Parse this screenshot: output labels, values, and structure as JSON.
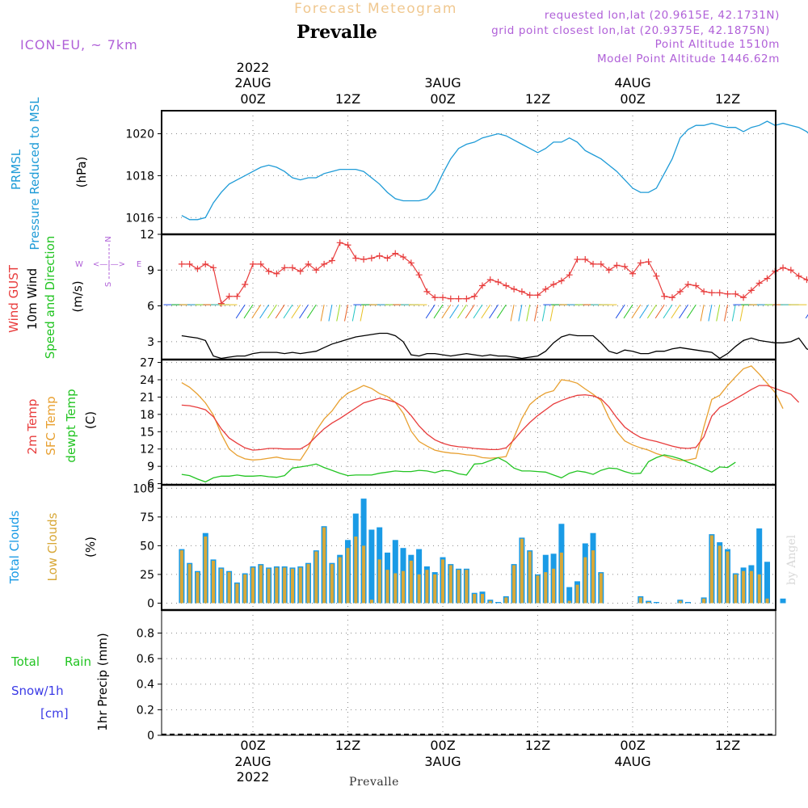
{
  "header": {
    "title": "Forecast Meteogram",
    "location": "Prevalle",
    "model": "ICON-EU, ~ 7km",
    "requested": "requested lon,lat (20.9615E, 42.1731N)",
    "grid_point": "grid point closest lon,lat (20.9375E, 42.1875N)",
    "point_alt": "Point Altitude 1510m",
    "model_alt": "Model Point Altitude 1446.62m",
    "footer_location": "Prevalle",
    "credit": "by Angel"
  },
  "time_axis": {
    "top_labels": [
      {
        "line1": "2022",
        "line2": "2AUG",
        "line3": "00Z"
      },
      {
        "line1": "",
        "line2": "",
        "line3": "12Z"
      },
      {
        "line1": "",
        "line2": "3AUG",
        "line3": "00Z"
      },
      {
        "line1": "",
        "line2": "",
        "line3": "12Z"
      },
      {
        "line1": "",
        "line2": "4AUG",
        "line3": "00Z"
      },
      {
        "line1": "",
        "line2": "",
        "line3": "12Z"
      }
    ],
    "bottom_labels": [
      {
        "line1": "00Z",
        "line2": "2AUG",
        "line3": "2022"
      },
      {
        "line1": "12Z",
        "line2": "",
        "line3": ""
      },
      {
        "line1": "00Z",
        "line2": "3AUG",
        "line3": ""
      },
      {
        "line1": "12Z",
        "line2": "",
        "line3": ""
      },
      {
        "line1": "00Z",
        "line2": "4AUG",
        "line3": ""
      },
      {
        "line1": "12Z",
        "line2": "",
        "line3": ""
      }
    ]
  },
  "panels": {
    "pressure": {
      "label1": "PRMSL",
      "label2": "Pressure Reduced to MSL",
      "unit": "(hPa)",
      "ticks": [
        "1020",
        "1018",
        "1016"
      ]
    },
    "wind": {
      "label1": "Wind GUST",
      "label2": "10m Wind",
      "label3": "Speed and Direction",
      "unit": "(m/s)",
      "ticks": [
        "12",
        "9",
        "6",
        "3"
      ],
      "compass": {
        "n": "N",
        "s": "S",
        "w": "W",
        "e": "E"
      }
    },
    "temp": {
      "label1": "2m Temp",
      "label2": "SFC Temp",
      "label3": "dewpt Temp",
      "unit": "(C)",
      "ticks": [
        "27",
        "24",
        "21",
        "18",
        "15",
        "12",
        "9",
        "6"
      ]
    },
    "clouds": {
      "label1": "Total Clouds",
      "label2": "Low Clouds",
      "unit": "(%)",
      "ticks": [
        "100",
        "75",
        "50",
        "25",
        "0"
      ]
    },
    "precip": {
      "label1": "Total",
      "label1b": "Rain",
      "label2": "Snow/1h",
      "label3": "[cm]",
      "unit": "1hr Precip (mm)",
      "ticks": [
        "0.8",
        "0.6",
        "0.4",
        "0.2",
        "0"
      ]
    }
  },
  "colors": {
    "pressure": "#1e9bd7",
    "gust": "#e83c3c",
    "wind": "#000000",
    "temp2m": "#e83c3c",
    "sfc": "#e8a030",
    "dewpt": "#22c422",
    "total_clouds": "#1a9be6",
    "low_clouds": "#d8a838",
    "title": "#f0c890",
    "purple": "#b060d8",
    "rain": "#22c422",
    "snow": "#3a3ae6"
  },
  "chart_data": [
    {
      "type": "line",
      "name": "PRMSL",
      "ylabel": "(hPa)",
      "ylim": [
        1015.2,
        1021.1
      ],
      "x_hours_from_2AUG_00Z_start": -9,
      "x_step_hours": 1,
      "values": [
        1016.1,
        1015.9,
        1015.9,
        1016.0,
        1016.7,
        1017.2,
        1017.6,
        1017.8,
        1018.0,
        1018.2,
        1018.4,
        1018.5,
        1018.4,
        1018.2,
        1017.9,
        1017.8,
        1017.9,
        1017.9,
        1018.1,
        1018.2,
        1018.3,
        1018.3,
        1018.3,
        1018.2,
        1017.9,
        1017.6,
        1017.2,
        1016.9,
        1016.8,
        1016.8,
        1016.8,
        1016.9,
        1017.3,
        1018.1,
        1018.8,
        1019.3,
        1019.5,
        1019.6,
        1019.8,
        1019.9,
        1020.0,
        1019.9,
        1019.7,
        1019.5,
        1019.3,
        1019.1,
        1019.3,
        1019.6,
        1019.6,
        1019.8,
        1019.6,
        1019.2,
        1019.0,
        1018.8,
        1018.5,
        1018.2,
        1017.8,
        1017.4,
        1017.2,
        1017.2,
        1017.4,
        1018.1,
        1018.8,
        1019.8,
        1020.2,
        1020.4,
        1020.4,
        1020.5,
        1020.4,
        1020.3,
        1020.3,
        1020.1,
        1020.3,
        1020.4,
        1020.6,
        1020.4,
        1020.5,
        1020.4,
        1020.3,
        1020.1,
        1019.7,
        1019.3,
        1019.0,
        1018.7,
        1018.4,
        1018.7,
        1018.7,
        1018.6,
        1018.8
      ]
    },
    {
      "type": "line",
      "name": "Wind GUST",
      "ylabel": "(m/s)",
      "ylim": [
        1.5,
        12
      ],
      "x_hours_from_2AUG_00Z_start": -9,
      "x_step_hours": 1,
      "values": [
        9.5,
        9.5,
        9.1,
        9.5,
        9.2,
        6.2,
        6.8,
        6.8,
        7.8,
        9.5,
        9.5,
        8.9,
        8.7,
        9.2,
        9.2,
        8.9,
        9.5,
        9.0,
        9.5,
        9.8,
        11.3,
        11.1,
        10.0,
        9.9,
        10.0,
        10.2,
        10.0,
        10.4,
        10.1,
        9.6,
        8.6,
        7.2,
        6.7,
        6.7,
        6.6,
        6.6,
        6.6,
        6.8,
        7.7,
        8.2,
        8.0,
        7.7,
        7.4,
        7.2,
        6.9,
        6.9,
        7.4,
        7.8,
        8.1,
        8.6,
        9.9,
        9.9,
        9.5,
        9.5,
        9.0,
        9.4,
        9.3,
        8.7,
        9.6,
        9.7,
        8.5,
        6.8,
        6.7,
        7.2,
        7.8,
        7.7,
        7.2,
        7.1,
        7.1,
        7.0,
        7.0,
        6.7,
        7.3,
        7.9,
        8.3,
        8.9,
        9.2,
        9.0,
        8.5,
        8.2,
        7.7,
        8.2,
        7.9,
        7.2
      ]
    },
    {
      "type": "line",
      "name": "10m Wind",
      "ylabel": "(m/s)",
      "ylim": [
        1.5,
        12
      ],
      "x_hours_from_2AUG_00Z_start": -9,
      "x_step_hours": 1,
      "values": [
        3.5,
        3.4,
        3.3,
        3.1,
        1.8,
        1.6,
        1.7,
        1.8,
        1.8,
        2.0,
        2.1,
        2.1,
        2.1,
        2.0,
        2.1,
        2.0,
        2.1,
        2.2,
        2.5,
        2.8,
        3.0,
        3.2,
        3.4,
        3.5,
        3.6,
        3.7,
        3.7,
        3.5,
        3.0,
        1.9,
        1.8,
        2.0,
        2.0,
        1.9,
        1.8,
        1.9,
        2.0,
        1.9,
        1.8,
        1.9,
        1.8,
        1.8,
        1.7,
        1.6,
        1.7,
        1.8,
        2.2,
        2.9,
        3.4,
        3.6,
        3.5,
        3.5,
        3.5,
        2.9,
        2.2,
        2.0,
        2.3,
        2.2,
        2.0,
        2.0,
        2.2,
        2.2,
        2.4,
        2.5,
        2.4,
        2.3,
        2.2,
        2.1,
        1.6,
        2.0,
        2.6,
        3.1,
        3.3,
        3.1,
        3.0,
        2.9,
        2.9,
        3.0,
        3.3,
        2.4,
        2.1
      ]
    },
    {
      "type": "line",
      "name": "2m Temp",
      "ylabel": "(C)",
      "ylim": [
        5.8,
        27.5
      ],
      "x_hours_from_2AUG_00Z_start": -9,
      "x_step_hours": 1,
      "values": [
        19.6,
        19.5,
        19.2,
        18.8,
        17.6,
        15.5,
        13.9,
        13.0,
        12.2,
        11.8,
        11.9,
        12.1,
        12.1,
        12.0,
        12.0,
        12.0,
        12.8,
        14.2,
        15.5,
        16.5,
        17.3,
        18.2,
        19.1,
        20.0,
        20.4,
        20.8,
        20.5,
        20.1,
        19.3,
        17.8,
        16.0,
        14.6,
        13.6,
        13.0,
        12.6,
        12.4,
        12.3,
        12.1,
        12.0,
        11.9,
        11.9,
        12.2,
        13.6,
        15.2,
        16.6,
        17.8,
        18.8,
        19.8,
        20.4,
        20.9,
        21.3,
        21.4,
        21.2,
        20.7,
        19.3,
        17.4,
        15.8,
        14.8,
        14.0,
        13.6,
        13.3,
        12.9,
        12.5,
        12.2,
        12.1,
        12.3,
        14.1,
        17.7,
        19.2,
        19.9,
        20.7,
        21.5,
        22.3,
        23.0,
        23.0,
        22.5,
        22.0,
        21.5,
        20.1
      ]
    },
    {
      "type": "line",
      "name": "SFC Temp",
      "ylabel": "(C)",
      "ylim": [
        5.8,
        27.5
      ],
      "x_hours_from_2AUG_00Z_start": -9,
      "x_step_hours": 1,
      "values": [
        23.5,
        22.7,
        21.5,
        20.0,
        17.9,
        14.6,
        12.0,
        10.9,
        10.3,
        10.1,
        10.2,
        10.4,
        10.6,
        10.3,
        10.2,
        10.1,
        12.2,
        15.2,
        17.2,
        18.6,
        20.5,
        21.7,
        22.3,
        23.0,
        22.5,
        21.6,
        21.1,
        20.1,
        18.2,
        15.1,
        13.3,
        12.5,
        11.8,
        11.5,
        11.3,
        11.2,
        11.0,
        10.9,
        10.5,
        10.4,
        10.5,
        10.7,
        14.0,
        17.3,
        19.7,
        20.9,
        21.7,
        22.1,
        24.0,
        23.8,
        23.4,
        22.4,
        21.5,
        20.4,
        17.4,
        15.0,
        13.4,
        12.7,
        12.2,
        11.8,
        11.2,
        10.8,
        10.3,
        10.0,
        10.1,
        10.4,
        15.8,
        20.6,
        21.3,
        23.0,
        24.5,
        25.9,
        26.4,
        25.0,
        23.4,
        21.8,
        19.0
      ]
    },
    {
      "type": "line",
      "name": "dewpt Temp",
      "ylabel": "(C)",
      "ylim": [
        5.8,
        27.5
      ],
      "x_hours_from_2AUG_00Z_start": -9,
      "x_step_hours": 1,
      "values": [
        7.6,
        7.4,
        6.8,
        6.3,
        7.0,
        7.3,
        7.3,
        7.5,
        7.3,
        7.3,
        7.4,
        7.2,
        7.1,
        7.4,
        8.7,
        8.9,
        9.1,
        9.4,
        8.8,
        8.3,
        7.8,
        7.4,
        7.5,
        7.5,
        7.5,
        7.8,
        8.0,
        8.2,
        8.1,
        8.1,
        8.3,
        8.2,
        7.9,
        8.3,
        8.2,
        7.7,
        7.5,
        9.4,
        9.5,
        10.0,
        10.5,
        9.8,
        8.7,
        8.2,
        8.2,
        8.1,
        8.0,
        7.5,
        7.0,
        7.8,
        8.2,
        8.0,
        7.6,
        8.3,
        8.7,
        8.6,
        8.1,
        7.7,
        7.8,
        9.8,
        10.5,
        11.0,
        10.7,
        10.3,
        9.7,
        9.2,
        8.6,
        8.0,
        8.9,
        8.8,
        9.7
      ]
    },
    {
      "type": "bar",
      "name": "Clouds",
      "ylabel": "(%)",
      "ylim": [
        0,
        100
      ],
      "x_hours_from_2AUG_00Z_start": -9,
      "x_step_hours": 1,
      "series": [
        {
          "name": "Total Clouds",
          "values": [
            47,
            35,
            28,
            61,
            38,
            31,
            28,
            18,
            26,
            32,
            34,
            31,
            32,
            32,
            31,
            32,
            35,
            46,
            67,
            35,
            42,
            55,
            78,
            91,
            64,
            66,
            44,
            55,
            48,
            42,
            47,
            32,
            27,
            40,
            34,
            30,
            30,
            9,
            10,
            3,
            1,
            6,
            34,
            57,
            46,
            25,
            42,
            43,
            69,
            14,
            19,
            52,
            61,
            27,
            0,
            0,
            0,
            0,
            6,
            2,
            1,
            0,
            0,
            3,
            1,
            0,
            5,
            60,
            53,
            47,
            26,
            31,
            33,
            65,
            36,
            0,
            4
          ]
        },
        {
          "name": "Low Clouds",
          "values": [
            46,
            34,
            27,
            58,
            37,
            30,
            27,
            17,
            25,
            31,
            33,
            30,
            31,
            31,
            30,
            31,
            34,
            45,
            66,
            34,
            40,
            48,
            58,
            50,
            3,
            38,
            29,
            26,
            28,
            37,
            25,
            29,
            25,
            38,
            33,
            29,
            29,
            8,
            8,
            2,
            0,
            5,
            33,
            56,
            45,
            24,
            27,
            30,
            44,
            2,
            16,
            40,
            46,
            26,
            0,
            0,
            0,
            0,
            5,
            1,
            0,
            0,
            0,
            2,
            0,
            0,
            4,
            59,
            50,
            45,
            25,
            28,
            28,
            25,
            4,
            0,
            0
          ]
        }
      ]
    },
    {
      "type": "bar",
      "name": "1hr Precip",
      "ylabel": "1hr Precip (mm)",
      "ylim": [
        0,
        0.95
      ],
      "series": [
        {
          "name": "Total Rain",
          "values": []
        },
        {
          "name": "Snow/1h",
          "values": []
        }
      ]
    }
  ]
}
